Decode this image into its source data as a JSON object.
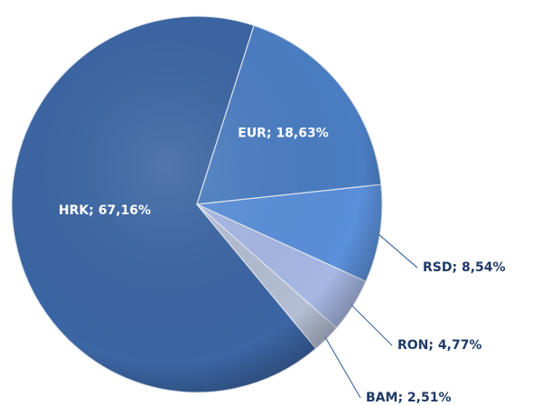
{
  "chart_data": {
    "type": "pie",
    "categories": [
      "HRK",
      "EUR",
      "RSD",
      "RON",
      "BAM"
    ],
    "values": [
      67.16,
      18.63,
      8.54,
      4.77,
      2.51
    ],
    "value_labels": [
      "67,16%",
      "18,63%",
      "8,54%",
      "4,77%",
      "2,51%"
    ],
    "separator": "; ",
    "colors": [
      "#3b65a3",
      "#4a7dc2",
      "#5a8fd9",
      "#a6b7e3",
      "#b3bdd3"
    ]
  }
}
